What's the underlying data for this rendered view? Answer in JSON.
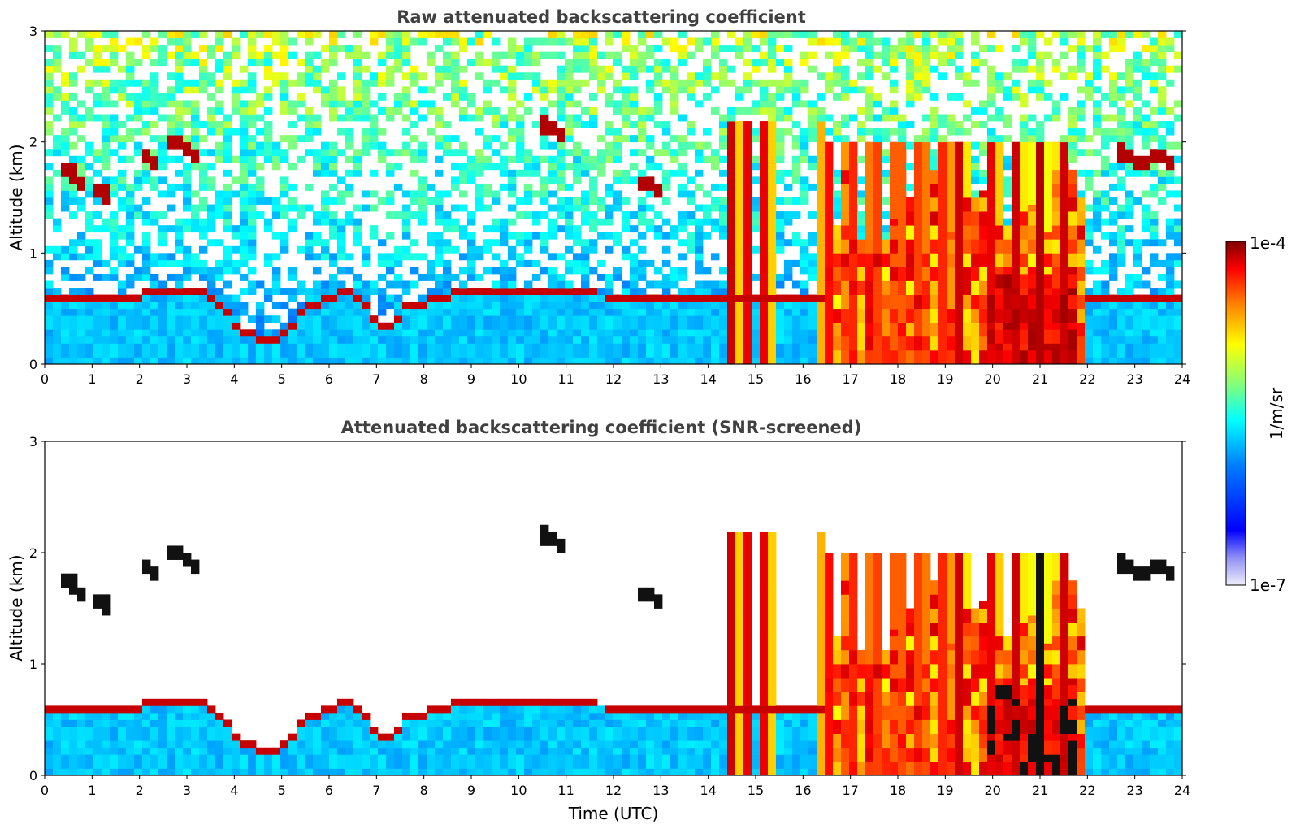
{
  "chart_data": [
    {
      "type": "heatmap",
      "title": "Raw attenuated backscattering coefficient",
      "xlabel": "",
      "ylabel": "Altitude (km)",
      "xlim": [
        0,
        24
      ],
      "ylim": [
        0,
        3
      ],
      "x_ticks": [
        "0",
        "1",
        "2",
        "3",
        "4",
        "5",
        "6",
        "7",
        "8",
        "9",
        "10",
        "11",
        "12",
        "13",
        "14",
        "15",
        "16",
        "17",
        "18",
        "19",
        "20",
        "21",
        "22",
        "23",
        "24"
      ],
      "y_ticks": [
        "0",
        "1",
        "2",
        "3"
      ],
      "boundary_layer_top_km": [
        {
          "t": 0,
          "z": 0.65
        },
        {
          "t": 1.5,
          "z": 0.6
        },
        {
          "t": 2.5,
          "z": 0.7
        },
        {
          "t": 3.5,
          "z": 0.65
        },
        {
          "t": 4.2,
          "z": 0.3
        },
        {
          "t": 5.0,
          "z": 0.25
        },
        {
          "t": 5.5,
          "z": 0.55
        },
        {
          "t": 6.5,
          "z": 0.7
        },
        {
          "t": 7.2,
          "z": 0.3
        },
        {
          "t": 7.6,
          "z": 0.55
        },
        {
          "t": 9,
          "z": 0.7
        },
        {
          "t": 12,
          "z": 0.65
        },
        {
          "t": 14,
          "z": 0.6
        }
      ],
      "elevated_layers": [
        {
          "t_start": 0.3,
          "t_end": 0.9,
          "z_km": 1.7
        },
        {
          "t_start": 1.0,
          "t_end": 1.4,
          "z_km": 1.5
        },
        {
          "t_start": 2.0,
          "t_end": 2.4,
          "z_km": 1.8
        },
        {
          "t_start": 2.6,
          "t_end": 3.2,
          "z_km": 1.95
        },
        {
          "t_start": 10.4,
          "t_end": 11.0,
          "z_km": 2.1
        },
        {
          "t_start": 12.5,
          "t_end": 13.1,
          "z_km": 1.6
        },
        {
          "t_start": 22.6,
          "t_end": 23.8,
          "z_km": 1.85
        }
      ],
      "convective_columns_hours": [
        14.5,
        14.8,
        15.2,
        16.5,
        17.0,
        17.5,
        18.0,
        18.5,
        19.0,
        19.3,
        20.0,
        20.5,
        21.0,
        21.5
      ],
      "colorbar": {
        "label": "1/m/sr",
        "min_label": "1e-7",
        "max_label": "1e-4",
        "scale": "log"
      }
    },
    {
      "type": "heatmap",
      "title": "Attenuated backscattering coefficient (SNR-screened)",
      "xlabel": "Time (UTC)",
      "ylabel": "Altitude (km)",
      "xlim": [
        0,
        24
      ],
      "ylim": [
        0,
        3
      ],
      "x_ticks": [
        "0",
        "1",
        "2",
        "3",
        "4",
        "5",
        "6",
        "7",
        "8",
        "9",
        "10",
        "11",
        "12",
        "13",
        "14",
        "15",
        "16",
        "17",
        "18",
        "19",
        "20",
        "21",
        "22",
        "23",
        "24"
      ],
      "y_ticks": [
        "0",
        "1",
        "2",
        "3"
      ],
      "screened_region": "signal above noise only; clear-air noise removed",
      "colorbar": {
        "label": "1/m/sr",
        "min_label": "1e-7",
        "max_label": "1e-4",
        "scale": "log"
      }
    }
  ],
  "colors": {
    "colormap": [
      "#00007f",
      "#0000ff",
      "#007fff",
      "#00ffff",
      "#7fff7f",
      "#ffff00",
      "#ff7f00",
      "#ff0000",
      "#7f0000"
    ],
    "low_end": "#e6e6fa",
    "title_color": "#404040"
  },
  "colorbar": {
    "label": "1/m/sr",
    "max_label": "1e-4",
    "min_label": "1e-7"
  }
}
